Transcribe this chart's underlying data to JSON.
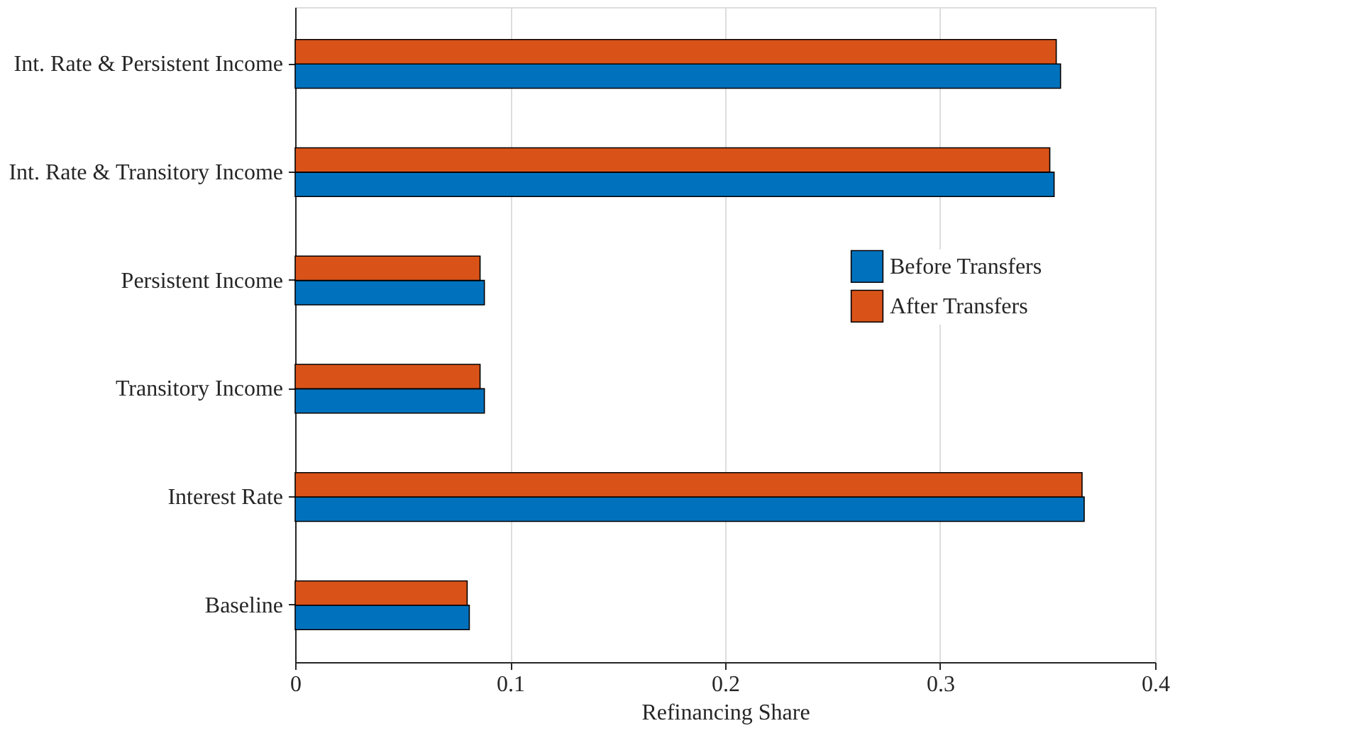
{
  "chart_data": {
    "type": "bar",
    "orientation": "horizontal",
    "xlabel": "Refinancing Share",
    "categories": [
      "Int. Rate & Persistent Income",
      "Int. Rate & Transitory Income",
      "Persistent Income",
      "Transitory Income",
      "Interest Rate",
      "Baseline"
    ],
    "series": [
      {
        "name": "Before Transfers",
        "color": "#0072bd",
        "values": [
          0.356,
          0.353,
          0.088,
          0.088,
          0.367,
          0.081
        ]
      },
      {
        "name": "After Transfers",
        "color": "#d95319",
        "values": [
          0.354,
          0.351,
          0.086,
          0.086,
          0.366,
          0.08
        ]
      }
    ],
    "xlim": [
      0,
      0.4
    ],
    "xticks": [
      0,
      0.1,
      0.2,
      0.3,
      0.4
    ],
    "grid": "x",
    "legend": "right"
  }
}
